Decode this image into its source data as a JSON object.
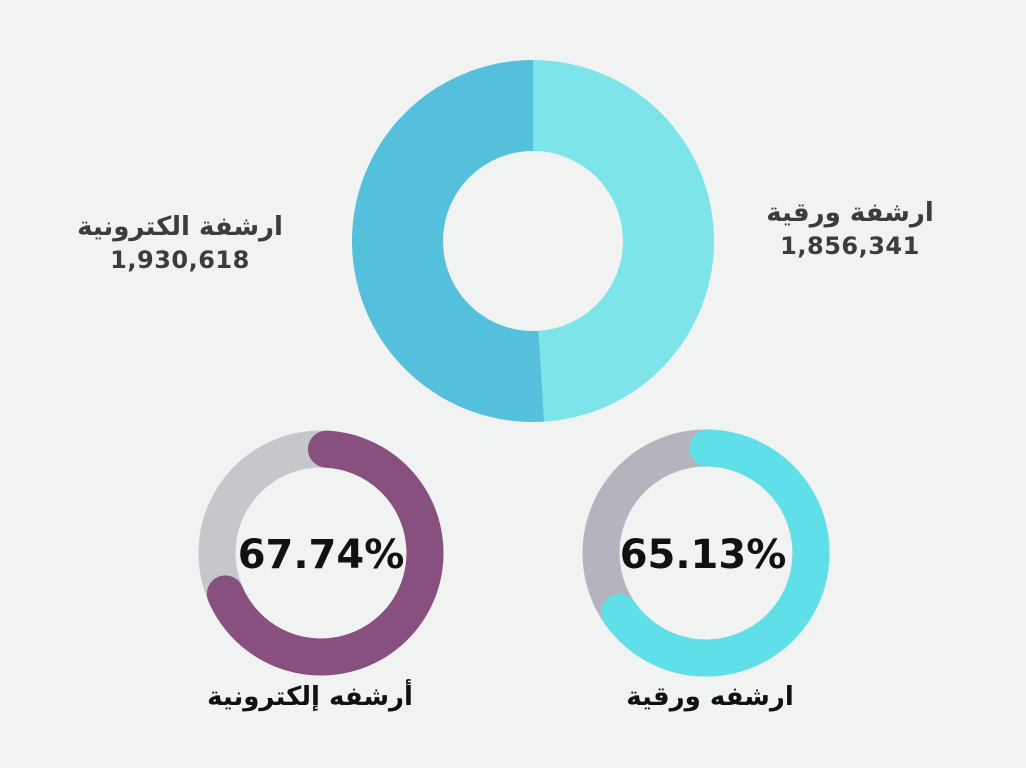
{
  "chart_data": [
    {
      "type": "pie",
      "variant": "donut",
      "title": "",
      "series": [
        {
          "name": "ارشفة ورقية",
          "value": 1856341,
          "color": "#7de4e9"
        },
        {
          "name": "ارشفة الكترونية",
          "value": 1930618,
          "color": "#55c0dc"
        }
      ],
      "labels": {
        "electronic": {
          "name": "ارشفة الكترونية",
          "value_text": "1,930,618"
        },
        "paper": {
          "name": "ارشفة ورقية",
          "value_text": "1,856,341"
        }
      }
    },
    {
      "type": "pie",
      "variant": "progress-ring",
      "value_percent": 67.74,
      "value_text": "67.74%",
      "caption": "أرشفه إلكترونية",
      "color": "#87507f",
      "track_color": "#c6c7cc"
    },
    {
      "type": "pie",
      "variant": "progress-ring",
      "value_percent": 65.13,
      "value_text": "65.13%",
      "caption": "ارشفه ورقية",
      "color": "#5fe0e8",
      "track_color": "#b4b3be"
    }
  ]
}
